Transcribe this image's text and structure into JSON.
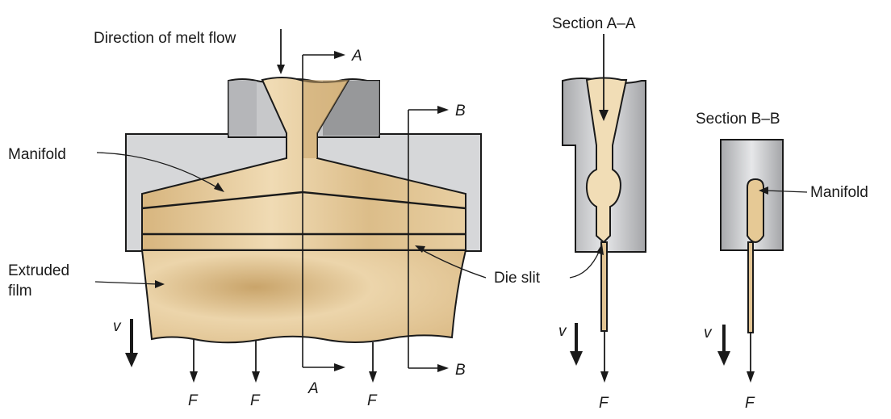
{
  "labels": {
    "direction_of_melt_flow": "Direction of melt flow",
    "manifold": "Manifold",
    "extruded_film_line1": "Extruded",
    "extruded_film_line2": "film",
    "die_slit": "Die slit",
    "section_aa": "Section A–A",
    "section_bb": "Section B–B",
    "manifold_right": "Manifold",
    "cut_a": "A",
    "cut_b": "B",
    "velocity": "v",
    "force": "F"
  },
  "colors": {
    "melt": "#e2c493",
    "melt_light": "#f1ddb6",
    "melt_dark": "#c9a46a",
    "die_light": "#d6d7d9",
    "die_mid": "#b9babc",
    "die_dark": "#8e8f92",
    "ink": "#1a1a1a"
  }
}
